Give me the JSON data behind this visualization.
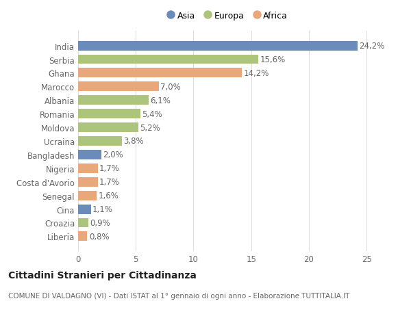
{
  "categories": [
    "Liberia",
    "Croazia",
    "Cina",
    "Senegal",
    "Costa d'Avorio",
    "Nigeria",
    "Bangladesh",
    "Ucraina",
    "Moldova",
    "Romania",
    "Albania",
    "Marocco",
    "Ghana",
    "Serbia",
    "India"
  ],
  "values": [
    0.8,
    0.9,
    1.1,
    1.6,
    1.7,
    1.7,
    2.0,
    3.8,
    5.2,
    5.4,
    6.1,
    7.0,
    14.2,
    15.6,
    24.2
  ],
  "labels": [
    "0,8%",
    "0,9%",
    "1,1%",
    "1,6%",
    "1,7%",
    "1,7%",
    "2,0%",
    "3,8%",
    "5,2%",
    "5,4%",
    "6,1%",
    "7,0%",
    "14,2%",
    "15,6%",
    "24,2%"
  ],
  "colors": [
    "#e8a87c",
    "#adc47d",
    "#6b8cba",
    "#e8a87c",
    "#e8a87c",
    "#e8a87c",
    "#6b8cba",
    "#adc47d",
    "#adc47d",
    "#adc47d",
    "#adc47d",
    "#e8a87c",
    "#e8a87c",
    "#adc47d",
    "#6b8cba"
  ],
  "legend_labels": [
    "Asia",
    "Europa",
    "Africa"
  ],
  "legend_colors": [
    "#6b8cba",
    "#adc47d",
    "#e8a87c"
  ],
  "title": "Cittadini Stranieri per Cittadinanza",
  "subtitle": "COMUNE DI VALDAGNO (VI) - Dati ISTAT al 1° gennaio di ogni anno - Elaborazione TUTTITALIA.IT",
  "xlim": [
    0,
    26
  ],
  "xticks": [
    0,
    5,
    10,
    15,
    20,
    25
  ],
  "background_color": "#ffffff",
  "grid_color": "#dddddd",
  "bar_height": 0.7,
  "label_fontsize": 8.5,
  "title_fontsize": 10,
  "subtitle_fontsize": 7.5,
  "tick_fontsize": 8.5
}
